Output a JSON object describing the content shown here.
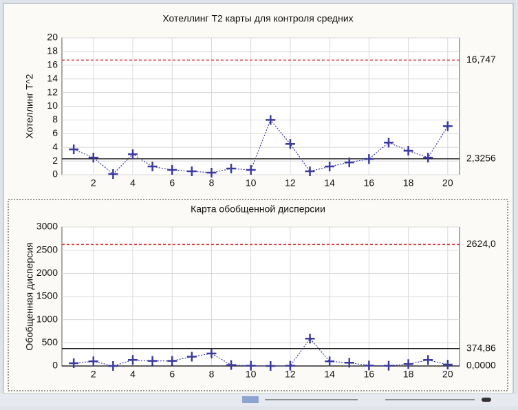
{
  "chart_data": [
    {
      "type": "line",
      "title": "Хотеллинг Т2 карты для контроля средних",
      "y_label": "Хотеллинг Т^2",
      "x": [
        1,
        2,
        3,
        4,
        5,
        6,
        7,
        8,
        9,
        10,
        11,
        12,
        13,
        14,
        15,
        16,
        17,
        18,
        19,
        20
      ],
      "values": [
        3.7,
        2.5,
        0.1,
        3.0,
        1.2,
        0.7,
        0.5,
        0.3,
        0.9,
        0.7,
        8.0,
        4.5,
        0.5,
        1.2,
        1.8,
        2.3,
        4.7,
        3.5,
        2.5,
        7.1
      ],
      "color": "#3a3aa0",
      "xlim": [
        0.4,
        20.6
      ],
      "xticks": [
        2,
        4,
        6,
        8,
        10,
        12,
        14,
        16,
        18,
        20
      ],
      "ylim": [
        0,
        20
      ],
      "yticks": [
        0,
        2,
        4,
        6,
        8,
        10,
        12,
        14,
        16,
        18,
        20
      ],
      "grid": true,
      "limits": [
        {
          "value": 16.747,
          "label": "16,747",
          "color": "#e03030",
          "dashed": true
        },
        {
          "value": 2.3256,
          "label": "2,3256",
          "color": "#000000",
          "dashed": false
        }
      ]
    },
    {
      "type": "line",
      "title": "Карта обобщенной дисперсии",
      "y_label": "Обобщенная дисперсия",
      "x": [
        1,
        2,
        3,
        4,
        5,
        6,
        7,
        8,
        9,
        10,
        11,
        12,
        13,
        14,
        15,
        16,
        17,
        18,
        19,
        20
      ],
      "values": [
        60,
        100,
        0,
        130,
        110,
        110,
        200,
        270,
        20,
        5,
        0,
        5,
        590,
        100,
        70,
        10,
        5,
        40,
        130,
        30
      ],
      "color": "#3a3aa0",
      "xlim": [
        0.4,
        20.6
      ],
      "xticks": [
        2,
        4,
        6,
        8,
        10,
        12,
        14,
        16,
        18,
        20
      ],
      "ylim": [
        0,
        3000
      ],
      "yticks": [
        0,
        500,
        1000,
        1500,
        2000,
        2500,
        3000
      ],
      "grid": true,
      "limits": [
        {
          "value": 2624.0,
          "label": "2624,0",
          "color": "#e03030",
          "dashed": true
        },
        {
          "value": 374.86,
          "label": "374,86",
          "color": "#000000",
          "dashed": false
        },
        {
          "value": 0,
          "label": "0,0000",
          "color": "#000000",
          "dashed": false
        }
      ]
    }
  ]
}
